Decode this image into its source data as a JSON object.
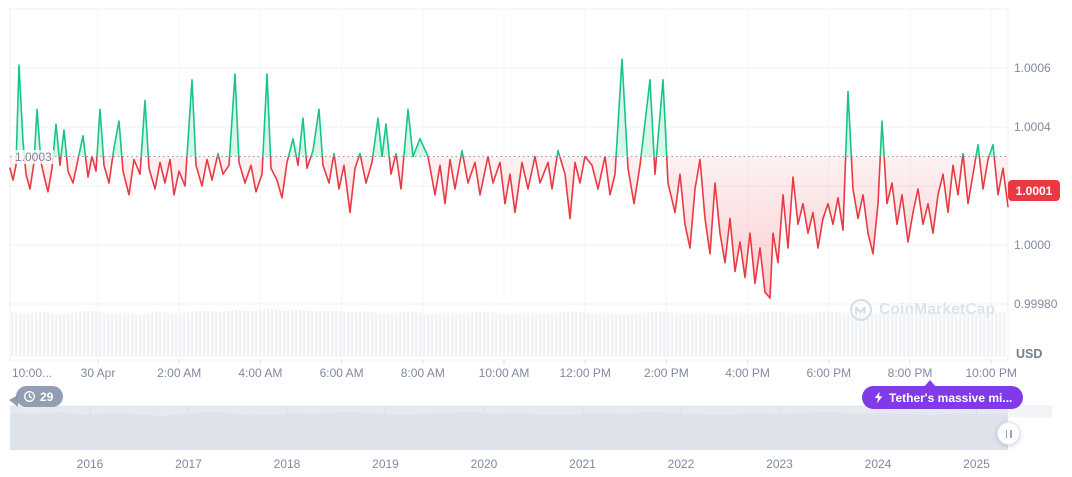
{
  "ui": {
    "watermark": "CoinMarketCap",
    "history_badge": "29",
    "annotation_text": "Tether's massive mi...",
    "colors": {
      "up": "#16c784",
      "down": "#ea3943",
      "annotation": "#8239e8",
      "history_badge": "#8996ad",
      "axis_text": "#808a9d",
      "gridline": "#eef1f5",
      "volume_bar": "#eff2f6",
      "navigator_fill": "#e9edf2"
    }
  },
  "chart_data": {
    "type": "line",
    "title": "",
    "ylabel": "USD",
    "legend": [],
    "grid": true,
    "ylim": [
      0.9997,
      1.0007
    ],
    "y_axis_labels": [
      {
        "label": "1.0006",
        "price": 1.0006
      },
      {
        "label": "1.0004",
        "price": 1.0004
      },
      {
        "label": "1.0000",
        "price": 1.0
      },
      {
        "label": "0.99980",
        "price": 0.9998
      }
    ],
    "gridline_prices": [
      1.0006,
      1.0004,
      1.0002,
      1.0,
      0.9998
    ],
    "average_line": {
      "label": "1.0003",
      "price": 1.0003
    },
    "current_price": {
      "label": "1.0001",
      "price": 1.00013
    },
    "x_ticks": [
      "10:00...",
      "30 Apr",
      "2:00 AM",
      "4:00 AM",
      "6:00 AM",
      "8:00 AM",
      "10:00 AM",
      "12:00 PM",
      "2:00 PM",
      "4:00 PM",
      "6:00 PM",
      "8:00 PM",
      "10:00 PM"
    ],
    "navigator_years": [
      "2016",
      "2017",
      "2018",
      "2019",
      "2020",
      "2021",
      "2022",
      "2023",
      "2024",
      "2025"
    ],
    "points": [
      [
        0,
        1.00026
      ],
      [
        3,
        1.00022
      ],
      [
        6,
        1.00027
      ],
      [
        9,
        1.00061
      ],
      [
        13,
        1.00035
      ],
      [
        16,
        1.00024
      ],
      [
        20,
        1.00019
      ],
      [
        24,
        1.00028
      ],
      [
        27,
        1.00046
      ],
      [
        31,
        1.00028
      ],
      [
        35,
        1.00022
      ],
      [
        38,
        1.00018
      ],
      [
        42,
        1.00026
      ],
      [
        46,
        1.00041
      ],
      [
        50,
        1.00027
      ],
      [
        54,
        1.00039
      ],
      [
        58,
        1.00025
      ],
      [
        63,
        1.00021
      ],
      [
        68,
        1.00029
      ],
      [
        73,
        1.00037
      ],
      [
        78,
        1.00023
      ],
      [
        82,
        1.0003
      ],
      [
        86,
        1.00025
      ],
      [
        90,
        1.00046
      ],
      [
        94,
        1.00027
      ],
      [
        99,
        1.00021
      ],
      [
        104,
        1.00033
      ],
      [
        109,
        1.00042
      ],
      [
        113,
        1.00025
      ],
      [
        119,
        1.00017
      ],
      [
        124,
        1.00029
      ],
      [
        130,
        1.00024
      ],
      [
        135,
        1.00049
      ],
      [
        139,
        1.00026
      ],
      [
        145,
        1.00019
      ],
      [
        150,
        1.00028
      ],
      [
        155,
        1.00021
      ],
      [
        160,
        1.00029
      ],
      [
        164,
        1.00017
      ],
      [
        169,
        1.00025
      ],
      [
        175,
        1.0002
      ],
      [
        182,
        1.00056
      ],
      [
        186,
        1.00027
      ],
      [
        192,
        1.0002
      ],
      [
        197,
        1.00029
      ],
      [
        202,
        1.00022
      ],
      [
        208,
        1.00031
      ],
      [
        213,
        1.00024
      ],
      [
        219,
        1.00027
      ],
      [
        225,
        1.00058
      ],
      [
        229,
        1.00028
      ],
      [
        235,
        1.00021
      ],
      [
        241,
        1.00027
      ],
      [
        246,
        1.00018
      ],
      [
        252,
        1.00024
      ],
      [
        257,
        1.00058
      ],
      [
        261,
        1.00026
      ],
      [
        267,
        1.00022
      ],
      [
        272,
        1.00016
      ],
      [
        277,
        1.00028
      ],
      [
        283,
        1.00036
      ],
      [
        288,
        1.00027
      ],
      [
        293,
        1.00043
      ],
      [
        297,
        1.00026
      ],
      [
        303,
        1.00032
      ],
      [
        309,
        1.00046
      ],
      [
        313,
        1.00027
      ],
      [
        319,
        1.00021
      ],
      [
        324,
        1.00031
      ],
      [
        329,
        1.00019
      ],
      [
        334,
        1.00027
      ],
      [
        340,
        1.00011
      ],
      [
        345,
        1.00026
      ],
      [
        350,
        1.00031
      ],
      [
        356,
        1.00021
      ],
      [
        362,
        1.00028
      ],
      [
        368,
        1.00043
      ],
      [
        372,
        1.0003
      ],
      [
        376,
        1.00041
      ],
      [
        381,
        1.00024
      ],
      [
        386,
        1.00031
      ],
      [
        391,
        1.00019
      ],
      [
        398,
        1.00046
      ],
      [
        403,
        1.0003
      ],
      [
        410,
        1.00036
      ],
      [
        418,
        1.0003
      ],
      [
        425,
        1.00017
      ],
      [
        430,
        1.00027
      ],
      [
        435,
        1.00014
      ],
      [
        440,
        1.00029
      ],
      [
        445,
        1.00019
      ],
      [
        452,
        1.00032
      ],
      [
        458,
        1.00021
      ],
      [
        465,
        1.00028
      ],
      [
        470,
        1.00017
      ],
      [
        478,
        1.0003
      ],
      [
        483,
        1.00021
      ],
      [
        490,
        1.00028
      ],
      [
        495,
        1.00014
      ],
      [
        500,
        1.00024
      ],
      [
        505,
        1.00011
      ],
      [
        512,
        1.00028
      ],
      [
        518,
        1.00019
      ],
      [
        525,
        1.0003
      ],
      [
        530,
        1.00021
      ],
      [
        538,
        1.00028
      ],
      [
        542,
        1.00019
      ],
      [
        548,
        1.00032
      ],
      [
        555,
        1.00024
      ],
      [
        560,
        1.00009
      ],
      [
        565,
        1.00028
      ],
      [
        570,
        1.00021
      ],
      [
        575,
        1.0003
      ],
      [
        582,
        1.00027
      ],
      [
        588,
        1.00019
      ],
      [
        595,
        1.0003
      ],
      [
        600,
        1.00017
      ],
      [
        605,
        1.00024
      ],
      [
        612,
        1.00063
      ],
      [
        618,
        1.00026
      ],
      [
        624,
        1.00014
      ],
      [
        630,
        1.00027
      ],
      [
        640,
        1.00056
      ],
      [
        645,
        1.00024
      ],
      [
        653,
        1.00056
      ],
      [
        658,
        1.00021
      ],
      [
        665,
        1.00011
      ],
      [
        670,
        1.00024
      ],
      [
        675,
        1.00007
      ],
      [
        680,
        0.99999
      ],
      [
        685,
        1.00019
      ],
      [
        690,
        1.00029
      ],
      [
        695,
        1.00009
      ],
      [
        700,
        0.99997
      ],
      [
        705,
        1.00021
      ],
      [
        710,
        1.00004
      ],
      [
        715,
        0.99994
      ],
      [
        720,
        1.00009
      ],
      [
        725,
        0.99991
      ],
      [
        730,
        1.00001
      ],
      [
        735,
        0.99989
      ],
      [
        740,
        1.00004
      ],
      [
        745,
        0.99987
      ],
      [
        750,
        0.99999
      ],
      [
        755,
        0.99984
      ],
      [
        760,
        0.99982
      ],
      [
        763,
        1.00004
      ],
      [
        768,
        0.99994
      ],
      [
        773,
        1.00017
      ],
      [
        778,
        0.99999
      ],
      [
        783,
        1.00023
      ],
      [
        788,
        1.00007
      ],
      [
        793,
        1.00014
      ],
      [
        798,
        1.00004
      ],
      [
        803,
        1.00011
      ],
      [
        808,
        0.99999
      ],
      [
        813,
        1.00009
      ],
      [
        818,
        1.00014
      ],
      [
        823,
        1.00007
      ],
      [
        828,
        1.00016
      ],
      [
        833,
        1.00005
      ],
      [
        838,
        1.00052
      ],
      [
        843,
        1.00019
      ],
      [
        848,
        1.00009
      ],
      [
        853,
        1.00017
      ],
      [
        858,
        1.00004
      ],
      [
        863,
        0.99997
      ],
      [
        868,
        1.00014
      ],
      [
        872,
        1.00042
      ],
      [
        877,
        1.00014
      ],
      [
        882,
        1.00021
      ],
      [
        887,
        1.00007
      ],
      [
        892,
        1.00017
      ],
      [
        898,
        1.00001
      ],
      [
        903,
        1.00011
      ],
      [
        908,
        1.00019
      ],
      [
        913,
        1.00007
      ],
      [
        918,
        1.00014
      ],
      [
        923,
        1.00004
      ],
      [
        928,
        1.00017
      ],
      [
        933,
        1.00024
      ],
      [
        938,
        1.00011
      ],
      [
        943,
        1.00027
      ],
      [
        948,
        1.00017
      ],
      [
        953,
        1.00031
      ],
      [
        958,
        1.00014
      ],
      [
        963,
        1.00024
      ],
      [
        968,
        1.00034
      ],
      [
        973,
        1.00019
      ],
      [
        978,
        1.00029
      ],
      [
        983,
        1.00034
      ],
      [
        988,
        1.00017
      ],
      [
        993,
        1.00026
      ],
      [
        998,
        1.00013
      ]
    ],
    "volume_profile": [
      44,
      43,
      45,
      42,
      44,
      46,
      43,
      44,
      42,
      45,
      43,
      44,
      46,
      44,
      47,
      45,
      48,
      46,
      47,
      45,
      46,
      44,
      45,
      43,
      44,
      45,
      42,
      44,
      43,
      45,
      44,
      42,
      44,
      43,
      44,
      45,
      43,
      44,
      42,
      43,
      45,
      44,
      43,
      44,
      42,
      44,
      43,
      45,
      44,
      43,
      44,
      45,
      43,
      42,
      44,
      45,
      43,
      44,
      45,
      44,
      43,
      44,
      45
    ],
    "navigator_profile": [
      3,
      4,
      2,
      5,
      3,
      4,
      6,
      3,
      2,
      4,
      5,
      3,
      4,
      2,
      3,
      5,
      4,
      3,
      2,
      4,
      3,
      5,
      4,
      3,
      4,
      2,
      3,
      4,
      5,
      3,
      4,
      3,
      2,
      4,
      3,
      4,
      5,
      3,
      4,
      3
    ]
  }
}
